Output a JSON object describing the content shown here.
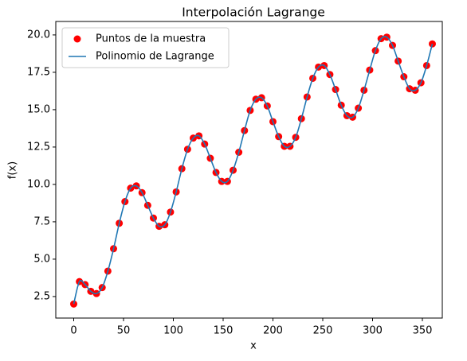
{
  "chart_data": {
    "type": "scatter_line",
    "title": "Interpolación Lagrange",
    "x_label": "x",
    "y_label": "f(x)",
    "x": [
      0,
      5.71,
      11.43,
      17.14,
      22.86,
      28.57,
      34.29,
      40,
      45.71,
      51.43,
      57.14,
      62.86,
      68.57,
      74.29,
      80,
      85.71,
      91.43,
      97.14,
      102.86,
      108.57,
      114.29,
      120,
      125.71,
      131.43,
      137.14,
      142.86,
      148.57,
      154.29,
      160,
      165.71,
      171.43,
      177.14,
      182.86,
      188.57,
      194.29,
      200,
      205.71,
      211.43,
      217.14,
      222.86,
      228.57,
      234.29,
      240,
      245.71,
      251.43,
      257.14,
      262.86,
      268.57,
      274.29,
      280,
      285.71,
      291.43,
      297.14,
      302.86,
      308.57,
      314.29,
      320,
      325.71,
      331.43,
      337.14,
      342.86,
      348.57,
      354.29,
      360
    ],
    "series": [
      {
        "name": "Puntos de la muestra",
        "kind": "points",
        "color": "#ff0000",
        "values": [
          2.0,
          3.5,
          3.3,
          2.85,
          2.7,
          3.1,
          4.2,
          5.7,
          7.4,
          8.85,
          9.75,
          9.9,
          9.45,
          8.6,
          7.75,
          7.2,
          7.3,
          8.15,
          9.5,
          11.05,
          12.35,
          13.1,
          13.25,
          12.7,
          11.75,
          10.8,
          10.2,
          10.2,
          10.95,
          12.15,
          13.6,
          14.95,
          15.7,
          15.8,
          15.25,
          14.2,
          13.2,
          12.55,
          12.55,
          13.15,
          14.4,
          15.85,
          17.1,
          17.85,
          17.95,
          17.35,
          16.35,
          15.3,
          14.6,
          14.5,
          15.1,
          16.3,
          17.65,
          18.95,
          19.75,
          19.85,
          19.3,
          18.25,
          17.2,
          16.4,
          16.3,
          16.8,
          17.95,
          19.4
        ]
      },
      {
        "name": "Polinomio de Lagrange",
        "kind": "line",
        "color": "#1f77b4",
        "values": [
          2.0,
          3.5,
          3.3,
          2.85,
          2.7,
          3.1,
          4.2,
          5.7,
          7.4,
          8.85,
          9.75,
          9.9,
          9.45,
          8.6,
          7.75,
          7.2,
          7.3,
          8.15,
          9.5,
          11.05,
          12.35,
          13.1,
          13.25,
          12.7,
          11.75,
          10.8,
          10.2,
          10.2,
          10.95,
          12.15,
          13.6,
          14.95,
          15.7,
          15.8,
          15.25,
          14.2,
          13.2,
          12.55,
          12.55,
          13.15,
          14.4,
          15.85,
          17.1,
          17.85,
          17.95,
          17.35,
          16.35,
          15.3,
          14.6,
          14.5,
          15.1,
          16.3,
          17.65,
          18.95,
          19.75,
          19.85,
          19.3,
          18.25,
          17.2,
          16.4,
          16.3,
          16.8,
          17.95,
          19.4
        ]
      }
    ],
    "xlim": [
      -18,
      370
    ],
    "ylim": [
      1.06,
      20.9
    ],
    "xticks": [
      0,
      50,
      100,
      150,
      200,
      250,
      300,
      350
    ],
    "yticks": [
      2.5,
      {
        "value": 5,
        "label": "5.0"
      },
      7.5,
      {
        "value": 10,
        "label": "10.0"
      },
      12.5,
      {
        "value": 15,
        "label": "15.0"
      },
      17.5,
      {
        "value": 20,
        "label": "20.0"
      }
    ],
    "legend": "upper left",
    "grid": false
  }
}
